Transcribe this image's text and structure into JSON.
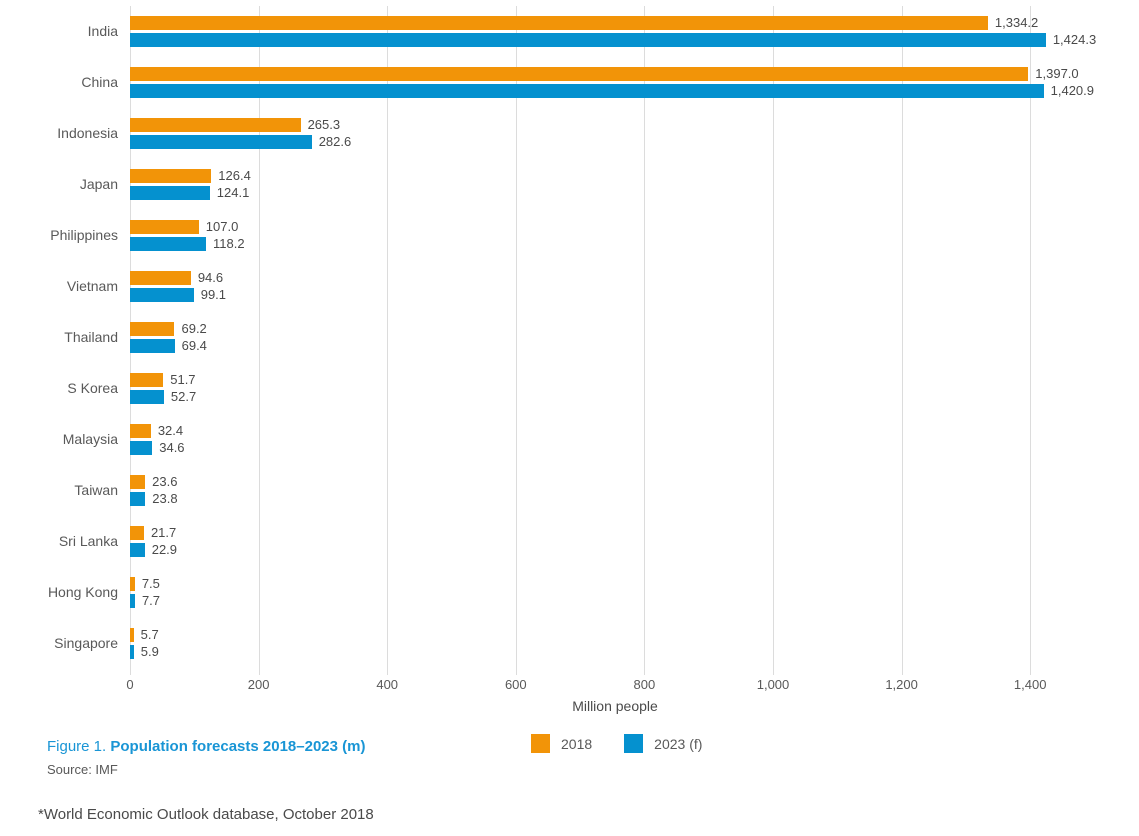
{
  "chart_data": {
    "type": "bar",
    "orientation": "horizontal",
    "title": "Figure 1. Population forecasts 2018–2023 (m)",
    "xlabel": "Million people",
    "grid": "vertical",
    "legend_position": "bottom",
    "xlim": [
      0,
      1569
    ],
    "categories": [
      "India",
      "China",
      "Indonesia",
      "Japan",
      "Philippines",
      "Vietnam",
      "Thailand",
      "S Korea",
      "Malaysia",
      "Taiwan",
      "Sri Lanka",
      "Hong Kong",
      "Singapore"
    ],
    "series": [
      {
        "name": "2018",
        "color": "#F29408",
        "values": [
          1334.2,
          1397.0,
          265.3,
          126.4,
          107.0,
          94.6,
          69.2,
          51.7,
          32.4,
          23.6,
          21.7,
          7.5,
          5.7
        ]
      },
      {
        "name": "2023 (f)",
        "color": "#0591CF",
        "values": [
          1424.3,
          1420.9,
          282.6,
          124.1,
          118.2,
          99.1,
          69.4,
          52.7,
          34.6,
          23.8,
          22.9,
          7.7,
          5.9
        ]
      }
    ],
    "ticks": [
      {
        "v": 0,
        "label": "0"
      },
      {
        "v": 200,
        "label": "200"
      },
      {
        "v": 400,
        "label": "400"
      },
      {
        "v": 600,
        "label": "600"
      },
      {
        "v": 800,
        "label": "800"
      },
      {
        "v": 1000,
        "label": "1,000"
      },
      {
        "v": 1200,
        "label": "1,200"
      },
      {
        "v": 1400,
        "label": "1,400"
      }
    ]
  },
  "caption": {
    "figure_label": "Figure 1. ",
    "title": "Population forecasts 2018–2023 (m)",
    "accent_color": "#1995d5"
  },
  "source": "Source: IMF",
  "footnote": "*World Economic Outlook database, October 2018"
}
